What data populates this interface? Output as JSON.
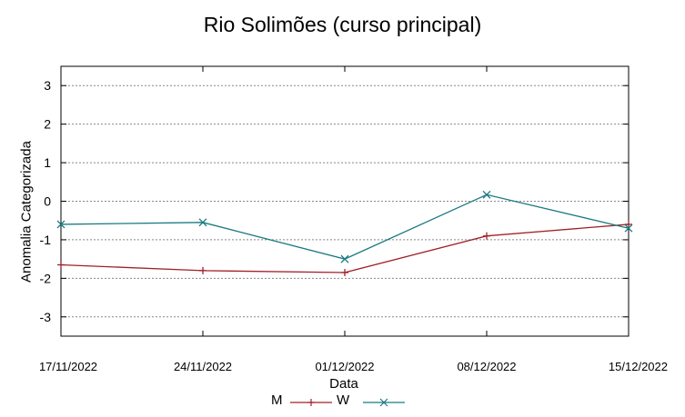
{
  "chart_data": {
    "type": "line",
    "title": "Rio Solimões (curso principal)",
    "xlabel": "Data",
    "ylabel": "Anomalia Categorizada",
    "categories": [
      "17/11/2022",
      "24/11/2022",
      "01/12/2022",
      "08/12/2022",
      "15/12/2022"
    ],
    "ylim": [
      -3.5,
      3.5
    ],
    "yticks": [
      "3",
      "2",
      "1",
      "0",
      "-1",
      "-2",
      "-3"
    ],
    "grid": true,
    "legend_position": "bottom",
    "series": [
      {
        "name": "M",
        "color": "#a0202a",
        "marker": "plus",
        "values": [
          -1.65,
          -1.8,
          -1.85,
          -0.9,
          -0.6
        ]
      },
      {
        "name": "W",
        "color": "#1a7a80",
        "marker": "x",
        "values": [
          -0.6,
          -0.55,
          -1.5,
          0.17,
          -0.7
        ]
      }
    ]
  }
}
